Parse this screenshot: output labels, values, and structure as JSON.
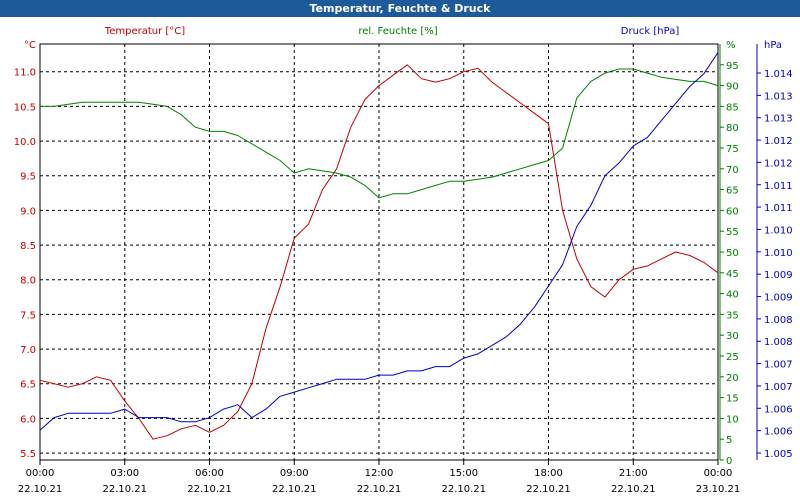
{
  "window": {
    "title": "Temperatur, Feuchte & Druck"
  },
  "chart_data": {
    "type": "line",
    "title": "Temperatur, Feuchte & Druck",
    "colors": {
      "temperature": "#c00000",
      "humidity": "#008000",
      "pressure": "#0000c0",
      "grid": "#000000"
    },
    "x_ticks": [
      {
        "time": "00:00",
        "date": "22.10.21"
      },
      {
        "time": "03:00",
        "date": "22.10.21"
      },
      {
        "time": "06:00",
        "date": "22.10.21"
      },
      {
        "time": "09:00",
        "date": "22.10.21"
      },
      {
        "time": "12:00",
        "date": "22.10.21"
      },
      {
        "time": "15:00",
        "date": "22.10.21"
      },
      {
        "time": "18:00",
        "date": "22.10.21"
      },
      {
        "time": "21:00",
        "date": "22.10.21"
      },
      {
        "time": "00:00",
        "date": "23.10.21"
      }
    ],
    "xlim_hours": [
      0,
      24
    ],
    "axes": {
      "temperature": {
        "unit": "°C",
        "label": "Temperatur [°C]",
        "ylim": [
          5.4,
          11.4
        ],
        "ticks": [
          "5.5",
          "6.0",
          "6.5",
          "7.0",
          "7.5",
          "8.0",
          "8.5",
          "9.0",
          "9.5",
          "10.0",
          "10.5",
          "11.0"
        ]
      },
      "humidity": {
        "unit": "%",
        "label": "rel. Feuchte [%]",
        "ylim": [
          0,
          100
        ],
        "ticks": [
          "0",
          "5",
          "10",
          "15",
          "20",
          "25",
          "30",
          "35",
          "40",
          "45",
          "50",
          "55",
          "60",
          "65",
          "70",
          "75",
          "80",
          "85",
          "90",
          "95"
        ]
      },
      "pressure": {
        "unit": "hPa",
        "label": "Druck [hPa]",
        "ylim": [
          1.0048,
          1.0146
        ],
        "ticks": [
          "1.005",
          "1.006",
          "1.006",
          "1.007",
          "1.007",
          "1.008",
          "1.008",
          "1.009",
          "1.009",
          "1.010",
          "1.010",
          "1.011",
          "1.011",
          "1.012",
          "1.012",
          "1.013",
          "1.013",
          "1.014"
        ]
      }
    },
    "series": [
      {
        "name": "Temperatur [°C]",
        "axis": "temperature",
        "x": [
          0,
          0.5,
          1,
          1.5,
          2,
          2.5,
          3,
          3.5,
          4,
          4.5,
          5,
          5.5,
          6,
          6.5,
          7,
          7.5,
          8,
          8.5,
          9,
          9.5,
          10,
          10.5,
          11,
          11.5,
          12,
          12.5,
          13,
          13.5,
          14,
          14.5,
          15,
          15.5,
          16,
          16.5,
          17,
          17.5,
          18,
          18.5,
          19,
          19.5,
          20,
          20.5,
          21,
          21.5,
          22,
          22.5,
          23,
          23.5,
          24
        ],
        "y": [
          6.55,
          6.5,
          6.45,
          6.5,
          6.6,
          6.55,
          6.25,
          6.0,
          5.7,
          5.75,
          5.85,
          5.9,
          5.8,
          5.9,
          6.1,
          6.5,
          7.3,
          7.9,
          8.6,
          8.8,
          9.3,
          9.6,
          10.2,
          10.6,
          10.8,
          10.95,
          11.1,
          10.9,
          10.85,
          10.9,
          11.0,
          11.05,
          10.85,
          10.7,
          10.55,
          10.4,
          10.25,
          9.0,
          8.3,
          7.9,
          7.75,
          8.0,
          8.15,
          8.2,
          8.3,
          8.4,
          8.35,
          8.25,
          8.1
        ]
      },
      {
        "name": "rel. Feuchte [%]",
        "axis": "humidity",
        "x": [
          0,
          0.5,
          1,
          1.5,
          2,
          2.5,
          3,
          3.5,
          4,
          4.5,
          5,
          5.5,
          6,
          6.5,
          7,
          7.5,
          8,
          8.5,
          9,
          9.5,
          10,
          10.5,
          11,
          11.5,
          12,
          12.5,
          13,
          13.5,
          14,
          14.5,
          15,
          15.5,
          16,
          16.5,
          17,
          17.5,
          18,
          18.5,
          19,
          19.5,
          20,
          20.5,
          21,
          21.5,
          22,
          22.5,
          23,
          23.5,
          24
        ],
        "y": [
          85,
          85,
          85.5,
          86,
          86,
          86,
          86,
          86,
          85.5,
          85,
          83,
          80,
          79,
          79,
          78,
          76,
          74,
          72,
          69,
          70,
          69.5,
          69,
          68,
          66,
          63,
          64,
          64,
          65,
          66,
          67,
          67,
          67.5,
          68,
          69,
          70,
          71,
          72,
          75,
          87,
          91,
          93,
          94,
          94,
          93,
          92,
          91.5,
          91,
          91,
          90
        ]
      },
      {
        "name": "Druck [hPa]",
        "axis": "pressure",
        "x": [
          0,
          0.5,
          1,
          1.5,
          2,
          2.5,
          3,
          3.5,
          4,
          4.5,
          5,
          5.5,
          6,
          6.5,
          7,
          7.5,
          8,
          8.5,
          9,
          9.5,
          10,
          10.5,
          11,
          11.5,
          12,
          12.5,
          13,
          13.5,
          14,
          14.5,
          15,
          15.5,
          16,
          16.5,
          17,
          17.5,
          18,
          18.5,
          19,
          19.5,
          20,
          20.5,
          21,
          21.5,
          22,
          22.5,
          23,
          23.5,
          24
        ],
        "y": [
          1.0055,
          1.0058,
          1.0059,
          1.0059,
          1.0059,
          1.0059,
          1.006,
          1.0058,
          1.0058,
          1.0058,
          1.0057,
          1.0057,
          1.0058,
          1.006,
          1.0061,
          1.0058,
          1.006,
          1.0063,
          1.0064,
          1.0065,
          1.0066,
          1.0067,
          1.0067,
          1.0067,
          1.0068,
          1.0068,
          1.0069,
          1.0069,
          1.007,
          1.007,
          1.0072,
          1.0073,
          1.0075,
          1.0077,
          1.008,
          1.0084,
          1.0089,
          1.0094,
          1.0103,
          1.0108,
          1.0115,
          1.0118,
          1.0122,
          1.0124,
          1.0128,
          1.0132,
          1.0136,
          1.0139,
          1.0144
        ]
      }
    ]
  }
}
